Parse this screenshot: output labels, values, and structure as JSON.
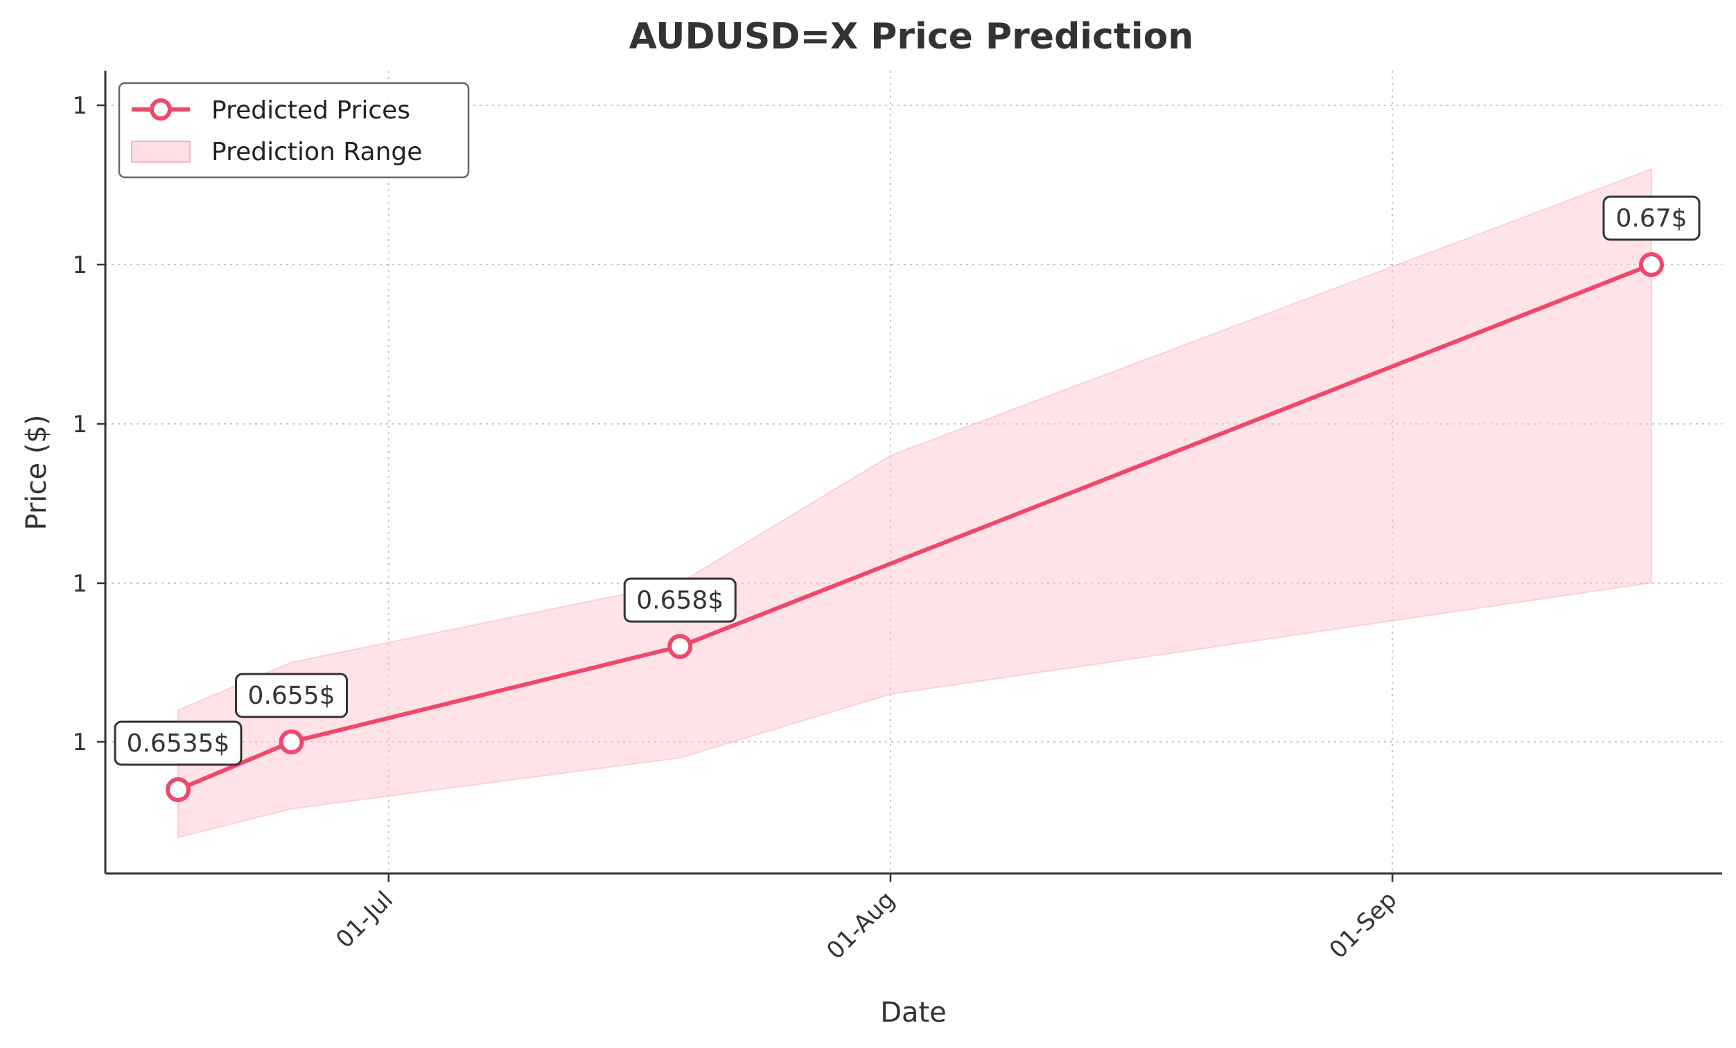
{
  "chart_data": {
    "type": "line",
    "title": "AUDUSD=X Price Prediction",
    "xlabel": "Date",
    "ylabel": "Price ($)",
    "x_tick_labels": [
      "01-Jul",
      "01-Aug",
      "01-Sep"
    ],
    "y_tick_labels": [
      "1",
      "1",
      "1",
      "1",
      "1"
    ],
    "grid": true,
    "legend_position": "top-left",
    "colors": {
      "line": "#f0476b",
      "band": "#ffc0cb"
    },
    "legend": {
      "line_label": "Predicted Prices",
      "band_label": "Prediction Range"
    },
    "series": [
      {
        "name": "Predicted Prices",
        "x": [
          "2024-06-18",
          "2024-06-25",
          "2024-07-19",
          "2024-09-17"
        ],
        "values": [
          0.6535,
          0.655,
          0.658,
          0.67
        ]
      }
    ],
    "range": {
      "name": "Prediction Range",
      "x": [
        "2024-06-18",
        "2024-06-25",
        "2024-07-19",
        "2024-08-01",
        "2024-09-17"
      ],
      "lower": [
        0.652,
        0.6529,
        0.6545,
        0.6565,
        0.66
      ],
      "upper": [
        0.656,
        0.6575,
        0.66,
        0.664,
        0.673
      ]
    },
    "annotations": [
      "0.6535$",
      "0.655$",
      "0.658$",
      "0.67$"
    ]
  }
}
